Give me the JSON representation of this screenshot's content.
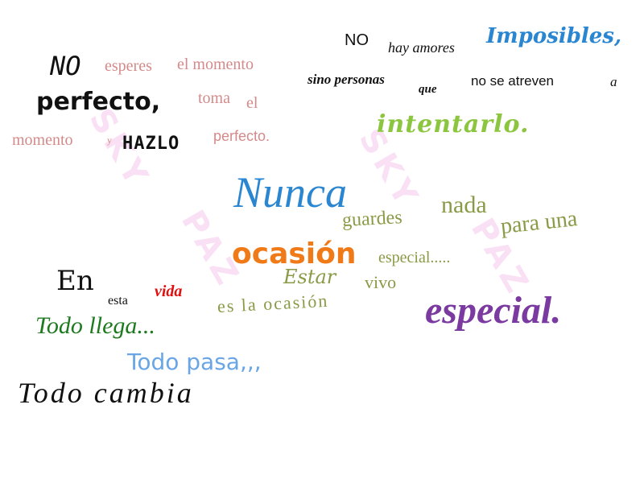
{
  "watermark": {
    "top": "SKY",
    "bottom": "PAZ"
  },
  "quote1": {
    "w1": "NO",
    "w2": "esperes",
    "w3": "el momento",
    "w4": "perfecto,",
    "w5": "toma",
    "w6": "el",
    "w7": "momento",
    "w8": "y",
    "w9": "HAZLO",
    "w10": "perfecto."
  },
  "quote2": {
    "w1": "NO",
    "w2": "hay amores",
    "w3": "Imposibles,",
    "w4": "sino personas",
    "w5": "que",
    "w6": "no se atreven",
    "w7": "a",
    "w8": "intentarlo."
  },
  "quote3": {
    "w1": "Nunca",
    "w2": "nada",
    "w3": "guardes",
    "w4": "para una",
    "w5": "ocasión",
    "w6": "especial.....",
    "w7": "Estar",
    "w8": "vivo",
    "w9": "es la ocasión",
    "w10": "especial."
  },
  "quote4": {
    "w1": "En",
    "w2": "esta",
    "w3": "vida",
    "w4": "Todo llega...",
    "w5": "Todo pasa,,,",
    "w6": "Todo cambia"
  },
  "colors": {
    "pink": "#d48a8a",
    "black": "#111111",
    "blue": "#2a86d0",
    "lime": "#8cc63f",
    "olive": "#8a9a46",
    "orange": "#f07a18",
    "purple": "#7a3aa0",
    "green": "#1e7a1e",
    "red": "#e01010",
    "lightblue": "#6aa6e6"
  }
}
